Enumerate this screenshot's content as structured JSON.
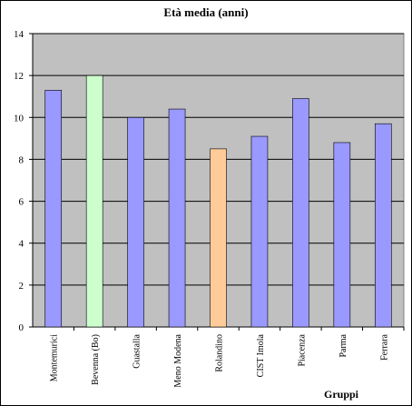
{
  "chart_data": {
    "type": "bar",
    "title": "Età media (anni)",
    "x_label": "Gruppi",
    "categories": [
      "Montemurici",
      "Bevenna (Bo)",
      "Guastalla",
      "Meno Modena",
      "Rolandino",
      "CIST Imola",
      "Piacenza",
      "Parma",
      "Ferrara"
    ],
    "values": [
      11.3,
      12,
      10,
      10.4,
      8.5,
      9.1,
      10.9,
      8.8,
      9.7
    ],
    "colors": [
      "#9999ff",
      "#ccffcc",
      "#9999ff",
      "#9999ff",
      "#ffcc99",
      "#9999ff",
      "#9999ff",
      "#9999ff",
      "#9999ff"
    ],
    "ylim": [
      0,
      14
    ],
    "yticks": [
      0,
      2,
      4,
      6,
      8,
      10,
      12,
      14
    ],
    "grid": true,
    "plot_background": "#c0c0c0"
  }
}
